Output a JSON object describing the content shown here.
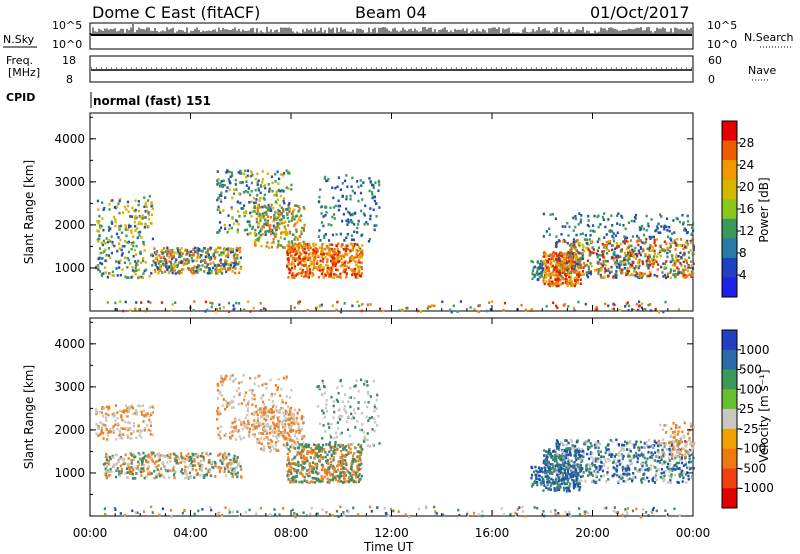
{
  "header": {
    "station": "Dome C East (fitACF)",
    "beam": "Beam 04",
    "date": "01/Oct/2017"
  },
  "summary": {
    "nsky_label": "N.Sky",
    "nsearch_label": "N.Search",
    "freq_label_1": "Freq.",
    "freq_label_2": "[MHz]",
    "nave_label": "Nave",
    "cpid_label": "CPID",
    "cpid_value": "normal (fast) 151",
    "nsky_ticks": [
      "10^5",
      "10^0"
    ],
    "nsearch_ticks": [
      "10^5",
      "10^0"
    ],
    "freq_ticks": [
      "18",
      "8"
    ],
    "nave_ticks": [
      "60",
      "0"
    ]
  },
  "chart_data": [
    {
      "type": "heatmap",
      "panel": "power",
      "ylabel": "Slant Range [km]",
      "xlabel": "Time UT",
      "yticks": [
        1000,
        2000,
        3000,
        4000
      ],
      "ylim": [
        0,
        4600
      ],
      "xticks": [
        "00:00",
        "04:00",
        "08:00",
        "12:00",
        "16:00",
        "20:00",
        "00:00"
      ],
      "colorbar": {
        "label": "Power [dB]",
        "ticks": [
          "28",
          "24",
          "20",
          "16",
          "12",
          "8",
          "4"
        ],
        "colors": [
          "#e00000",
          "#f05a00",
          "#f09a00",
          "#d4b800",
          "#8ac81e",
          "#3a9a5a",
          "#2a7aa8",
          "#2040c0",
          "#2020e8"
        ]
      }
    },
    {
      "type": "heatmap",
      "panel": "velocity",
      "ylabel": "Slant Range [km]",
      "xlabel": "Time UT",
      "yticks": [
        1000,
        2000,
        3000,
        4000
      ],
      "ylim": [
        0,
        4600
      ],
      "xticks": [
        "00:00",
        "04:00",
        "08:00",
        "12:00",
        "16:00",
        "20:00",
        "00:00"
      ],
      "colorbar": {
        "label": "Velocity [m s⁻¹]",
        "ticks": [
          "1000",
          "500",
          "100",
          "25",
          "-25",
          "-100",
          "-500",
          "-1000"
        ],
        "colors": [
          "#2040c0",
          "#2a6aa8",
          "#3a9a5a",
          "#68c030",
          "#c8c8c0",
          "#f0a000",
          "#f07810",
          "#f04010",
          "#e00000"
        ]
      }
    }
  ],
  "colors": {
    "p_high": "#e02000",
    "p_orange": "#f07010",
    "p_yellow": "#d8b400",
    "p_green": "#3a9a5a",
    "p_blue": "#2050b0",
    "v_grey": "#c8c8c0",
    "v_orange": "#f08020",
    "v_green": "#3a8a6a",
    "v_blue": "#2050b0"
  }
}
